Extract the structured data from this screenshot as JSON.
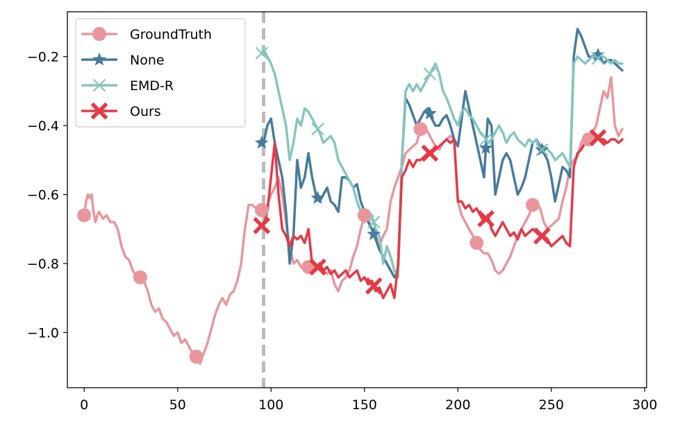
{
  "chart_data": {
    "type": "line",
    "title": "",
    "xlabel": "",
    "ylabel": "",
    "xlim": [
      -9,
      301
    ],
    "ylim": [
      -1.16,
      -0.07
    ],
    "xticks": [
      0,
      50,
      100,
      150,
      200,
      250,
      300
    ],
    "xtick_labels": [
      "0",
      "50",
      "100",
      "150",
      "200",
      "250",
      "300"
    ],
    "yticks": [
      -1.0,
      -0.8,
      -0.6,
      -0.4,
      -0.2
    ],
    "ytick_labels": [
      "−1.0",
      "−0.8",
      "−0.6",
      "−0.4",
      "−0.2"
    ],
    "grid": false,
    "legend_position": "top-left",
    "vline": {
      "x": 96,
      "color": "#bbbbbb",
      "style": "dashed"
    },
    "series": [
      {
        "name": "GroundTruth",
        "color": "#e8969c",
        "marker": "circle",
        "x": [
          0,
          1,
          2,
          3,
          4,
          5,
          6,
          7,
          8,
          10,
          12,
          14,
          16,
          18,
          20,
          22,
          24,
          26,
          28,
          30,
          32,
          34,
          36,
          38,
          40,
          42,
          44,
          46,
          48,
          50,
          52,
          54,
          56,
          58,
          60,
          62,
          64,
          66,
          68,
          70,
          72,
          74,
          76,
          78,
          80,
          82,
          84,
          86,
          88,
          90,
          92,
          94,
          96,
          98,
          100,
          102,
          104,
          106,
          108,
          110,
          112,
          114,
          116,
          118,
          120,
          122,
          124,
          126,
          128,
          130,
          132,
          134,
          136,
          138,
          140,
          142,
          144,
          146,
          148,
          150,
          152,
          154,
          156,
          158,
          160,
          162,
          164,
          166,
          168,
          170,
          172,
          174,
          176,
          178,
          180,
          182,
          184,
          186,
          188,
          190,
          192,
          194,
          196,
          198,
          200,
          202,
          204,
          206,
          208,
          210,
          212,
          214,
          216,
          218,
          220,
          222,
          224,
          226,
          228,
          230,
          232,
          234,
          236,
          238,
          240,
          242,
          244,
          246,
          248,
          250,
          252,
          254,
          256,
          258,
          260,
          262,
          264,
          266,
          268,
          270,
          272,
          274,
          276,
          278,
          280,
          282,
          284,
          286,
          288
        ],
        "y": [
          -0.66,
          -0.62,
          -0.6,
          -0.61,
          -0.6,
          -0.65,
          -0.68,
          -0.66,
          -0.65,
          -0.67,
          -0.66,
          -0.68,
          -0.68,
          -0.7,
          -0.75,
          -0.78,
          -0.79,
          -0.82,
          -0.84,
          -0.84,
          -0.85,
          -0.88,
          -0.92,
          -0.94,
          -0.93,
          -0.96,
          -0.97,
          -0.99,
          -1.01,
          -1.0,
          -1.03,
          -1.02,
          -1.04,
          -1.06,
          -1.07,
          -1.09,
          -1.06,
          -1.03,
          -0.99,
          -0.95,
          -0.92,
          -0.9,
          -0.92,
          -0.89,
          -0.88,
          -0.85,
          -0.8,
          -0.7,
          -0.63,
          -0.63,
          -0.64,
          -0.65,
          -0.64,
          -0.63,
          -0.6,
          -0.58,
          -0.55,
          -0.6,
          -0.68,
          -0.75,
          -0.8,
          -0.79,
          -0.81,
          -0.82,
          -0.81,
          -0.8,
          -0.82,
          -0.8,
          -0.82,
          -0.83,
          -0.82,
          -0.86,
          -0.88,
          -0.85,
          -0.84,
          -0.82,
          -0.78,
          -0.75,
          -0.7,
          -0.66,
          -0.67,
          -0.7,
          -0.72,
          -0.75,
          -0.72,
          -0.7,
          -0.62,
          -0.58,
          -0.55,
          -0.52,
          -0.48,
          -0.47,
          -0.46,
          -0.45,
          -0.41,
          -0.4,
          -0.42,
          -0.44,
          -0.46,
          -0.47,
          -0.45,
          -0.44,
          -0.43,
          -0.44,
          -0.62,
          -0.66,
          -0.68,
          -0.7,
          -0.72,
          -0.74,
          -0.76,
          -0.77,
          -0.77,
          -0.79,
          -0.82,
          -0.83,
          -0.82,
          -0.8,
          -0.78,
          -0.75,
          -0.72,
          -0.7,
          -0.68,
          -0.66,
          -0.63,
          -0.62,
          -0.64,
          -0.68,
          -0.7,
          -0.69,
          -0.68,
          -0.67,
          -0.62,
          -0.58,
          -0.52,
          -0.5,
          -0.49,
          -0.45,
          -0.43,
          -0.44,
          -0.42,
          -0.4,
          -0.35,
          -0.3,
          -0.32,
          -0.26,
          -0.4,
          -0.43,
          -0.41
        ],
        "marker_x": [
          0,
          30,
          60,
          95,
          120,
          150,
          180,
          210,
          240,
          270
        ]
      },
      {
        "name": "None",
        "color": "#457b9d",
        "marker": "star",
        "x": [
          95,
          96,
          98,
          100,
          102,
          104,
          106,
          108,
          110,
          112,
          114,
          116,
          118,
          120,
          122,
          124,
          126,
          128,
          130,
          132,
          134,
          136,
          138,
          140,
          142,
          144,
          146,
          148,
          150,
          152,
          154,
          156,
          158,
          160,
          162,
          164,
          166,
          168,
          170,
          172,
          174,
          176,
          178,
          180,
          182,
          184,
          186,
          188,
          190,
          192,
          194,
          196,
          198,
          200,
          202,
          204,
          206,
          208,
          210,
          212,
          214,
          216,
          218,
          220,
          222,
          224,
          226,
          228,
          230,
          232,
          234,
          236,
          238,
          240,
          242,
          244,
          246,
          248,
          250,
          252,
          254,
          256,
          258,
          260,
          262,
          264,
          266,
          268,
          270,
          272,
          274,
          276,
          278,
          280,
          282,
          284,
          286,
          288
        ],
        "y": [
          -0.45,
          -0.45,
          -0.4,
          -0.38,
          -0.45,
          -0.5,
          -0.55,
          -0.65,
          -0.8,
          -0.72,
          -0.5,
          -0.58,
          -0.55,
          -0.48,
          -0.55,
          -0.6,
          -0.62,
          -0.6,
          -0.58,
          -0.62,
          -0.63,
          -0.65,
          -0.55,
          -0.55,
          -0.56,
          -0.58,
          -0.57,
          -0.62,
          -0.65,
          -0.68,
          -0.7,
          -0.73,
          -0.76,
          -0.78,
          -0.8,
          -0.82,
          -0.84,
          -0.82,
          -0.5,
          -0.32,
          -0.34,
          -0.37,
          -0.4,
          -0.38,
          -0.36,
          -0.35,
          -0.38,
          -0.4,
          -0.4,
          -0.38,
          -0.37,
          -0.4,
          -0.44,
          -0.46,
          -0.38,
          -0.3,
          -0.35,
          -0.4,
          -0.45,
          -0.5,
          -0.55,
          -0.38,
          -0.4,
          -0.6,
          -0.55,
          -0.5,
          -0.48,
          -0.5,
          -0.55,
          -0.6,
          -0.58,
          -0.55,
          -0.5,
          -0.45,
          -0.44,
          -0.46,
          -0.48,
          -0.5,
          -0.55,
          -0.62,
          -0.57,
          -0.52,
          -0.53,
          -0.55,
          -0.2,
          -0.12,
          -0.14,
          -0.17,
          -0.2,
          -0.2,
          -0.19,
          -0.2,
          -0.22,
          -0.21,
          -0.21,
          -0.22,
          -0.23,
          -0.24
        ],
        "marker_x": [
          95,
          125,
          155,
          185,
          215,
          245,
          275
        ]
      },
      {
        "name": "EMD-R",
        "color": "#85c6bd",
        "marker": "x",
        "x": [
          95,
          96,
          98,
          100,
          102,
          104,
          106,
          108,
          110,
          112,
          114,
          116,
          118,
          120,
          122,
          124,
          126,
          128,
          130,
          132,
          134,
          136,
          138,
          140,
          142,
          144,
          146,
          148,
          150,
          152,
          154,
          156,
          158,
          160,
          162,
          164,
          166,
          168,
          170,
          172,
          174,
          176,
          178,
          180,
          182,
          184,
          186,
          188,
          190,
          192,
          194,
          196,
          198,
          200,
          202,
          204,
          206,
          208,
          210,
          212,
          214,
          216,
          218,
          220,
          222,
          224,
          226,
          228,
          230,
          232,
          234,
          236,
          238,
          240,
          242,
          244,
          246,
          248,
          250,
          252,
          254,
          256,
          258,
          260,
          262,
          264,
          266,
          268,
          270,
          272,
          274,
          276,
          278,
          280,
          282,
          284,
          286,
          288
        ],
        "y": [
          -0.19,
          -0.18,
          -0.2,
          -0.22,
          -0.25,
          -0.3,
          -0.35,
          -0.4,
          -0.5,
          -0.45,
          -0.38,
          -0.4,
          -0.35,
          -0.36,
          -0.38,
          -0.4,
          -0.42,
          -0.45,
          -0.44,
          -0.43,
          -0.45,
          -0.5,
          -0.52,
          -0.54,
          -0.56,
          -0.58,
          -0.62,
          -0.65,
          -0.68,
          -0.65,
          -0.66,
          -0.7,
          -0.72,
          -0.8,
          -0.75,
          -0.78,
          -0.82,
          -0.84,
          -0.5,
          -0.3,
          -0.28,
          -0.3,
          -0.28,
          -0.3,
          -0.28,
          -0.26,
          -0.24,
          -0.22,
          -0.25,
          -0.3,
          -0.32,
          -0.35,
          -0.38,
          -0.4,
          -0.36,
          -0.35,
          -0.37,
          -0.38,
          -0.4,
          -0.42,
          -0.43,
          -0.45,
          -0.44,
          -0.42,
          -0.4,
          -0.42,
          -0.45,
          -0.43,
          -0.42,
          -0.44,
          -0.45,
          -0.46,
          -0.44,
          -0.45,
          -0.44,
          -0.48,
          -0.46,
          -0.47,
          -0.48,
          -0.5,
          -0.49,
          -0.48,
          -0.5,
          -0.52,
          -0.22,
          -0.2,
          -0.21,
          -0.22,
          -0.21,
          -0.2,
          -0.21,
          -0.2,
          -0.2,
          -0.21,
          -0.22,
          -0.21,
          -0.22,
          -0.22
        ],
        "marker_x": [
          95,
          125,
          155,
          185,
          215,
          245,
          275
        ]
      },
      {
        "name": "Ours",
        "color": "#e63946",
        "marker": "X",
        "x": [
          95,
          96,
          98,
          100,
          102,
          104,
          106,
          108,
          110,
          112,
          114,
          116,
          118,
          120,
          122,
          124,
          126,
          128,
          130,
          132,
          134,
          136,
          138,
          140,
          142,
          144,
          146,
          148,
          150,
          152,
          154,
          156,
          158,
          160,
          162,
          164,
          166,
          168,
          170,
          172,
          174,
          176,
          178,
          180,
          182,
          184,
          186,
          188,
          190,
          192,
          194,
          196,
          198,
          200,
          202,
          204,
          206,
          208,
          210,
          212,
          214,
          216,
          218,
          220,
          222,
          224,
          226,
          228,
          230,
          232,
          234,
          236,
          238,
          240,
          242,
          244,
          246,
          248,
          250,
          252,
          254,
          256,
          258,
          260,
          262,
          264,
          266,
          268,
          270,
          272,
          274,
          276,
          278,
          280,
          282,
          284,
          286,
          288
        ],
        "y": [
          -0.69,
          -0.69,
          -0.65,
          -0.55,
          -0.45,
          -0.6,
          -0.7,
          -0.72,
          -0.75,
          -0.72,
          -0.73,
          -0.72,
          -0.74,
          -0.7,
          -0.8,
          -0.82,
          -0.8,
          -0.82,
          -0.81,
          -0.83,
          -0.82,
          -0.84,
          -0.83,
          -0.82,
          -0.84,
          -0.83,
          -0.82,
          -0.85,
          -0.84,
          -0.86,
          -0.85,
          -0.88,
          -0.87,
          -0.9,
          -0.88,
          -0.86,
          -0.9,
          -0.8,
          -0.55,
          -0.53,
          -0.5,
          -0.52,
          -0.5,
          -0.5,
          -0.49,
          -0.48,
          -0.48,
          -0.47,
          -0.46,
          -0.45,
          -0.44,
          -0.45,
          -0.44,
          -0.62,
          -0.62,
          -0.64,
          -0.63,
          -0.65,
          -0.64,
          -0.66,
          -0.68,
          -0.66,
          -0.7,
          -0.72,
          -0.7,
          -0.68,
          -0.7,
          -0.72,
          -0.71,
          -0.73,
          -0.7,
          -0.72,
          -0.71,
          -0.7,
          -0.71,
          -0.72,
          -0.72,
          -0.73,
          -0.75,
          -0.74,
          -0.73,
          -0.72,
          -0.74,
          -0.75,
          -0.52,
          -0.48,
          -0.47,
          -0.45,
          -0.43,
          -0.42,
          -0.43,
          -0.44,
          -0.44,
          -0.45,
          -0.44,
          -0.44,
          -0.45,
          -0.44
        ],
        "marker_x": [
          95,
          125,
          155,
          185,
          215,
          245,
          275
        ]
      }
    ]
  }
}
